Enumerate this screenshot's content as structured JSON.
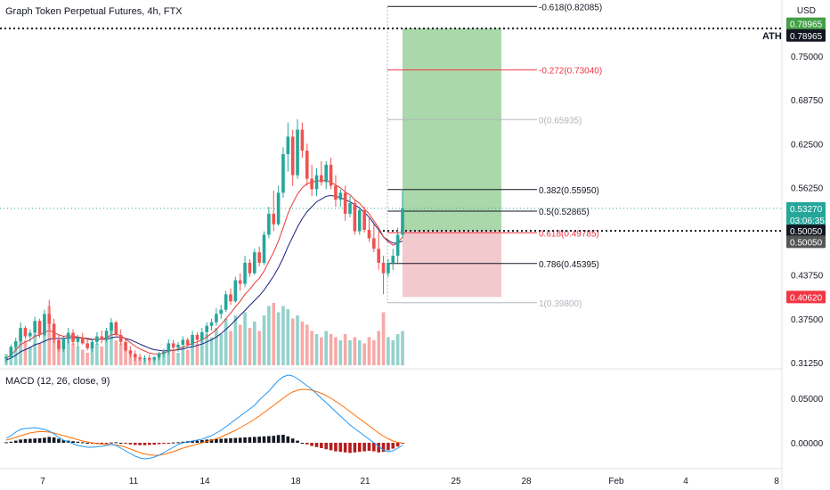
{
  "header": {
    "title": "Graph Token Perpetual Futures, 4h, FTX",
    "currency": "USD",
    "macd_title": "MACD (12, 26, close, 9)",
    "ath_label": "ATH"
  },
  "colors": {
    "up": "#26a69a",
    "down": "#ef5350",
    "ma_fast": "#e53935",
    "ma_slow": "#1a237e",
    "macd_line": "#2196f3",
    "signal_line": "#ff6d00",
    "target_zone": "#a5d6a7",
    "stop_zone": "#f1c3c6",
    "axis_text": "#131722",
    "badge_green": "#43a047",
    "badge_red": "#f23645",
    "badge_black": "#131722",
    "badge_teal": "#26a69a"
  },
  "chart_data": {
    "type": "candlestick",
    "x_ticks": [
      "7",
      "11",
      "14",
      "18",
      "21",
      "25",
      "28",
      "Feb",
      "4",
      "8"
    ],
    "y_ticks": [
      "0.75000",
      "0.68750",
      "0.62500",
      "0.56250",
      "0.43750",
      "0.37500",
      "0.31250"
    ],
    "macd_ticks": [
      "0.05000",
      "0.00000"
    ],
    "price_labels": [
      {
        "text": "0.78965",
        "price": 0.7963,
        "style": "green"
      },
      {
        "text": "0.78965",
        "price": 0.7795,
        "style": "black"
      },
      {
        "text": "0.53270",
        "price": 0.5327,
        "style": "teal"
      },
      {
        "text": "03:06:35",
        "price": 0.5163,
        "style": "teal"
      },
      {
        "text": "0.50050",
        "price": 0.5005,
        "style": "black"
      },
      {
        "text": "0.50050",
        "price": 0.485,
        "style": "grey"
      },
      {
        "text": "0.40620",
        "price": 0.4062,
        "style": "red"
      }
    ],
    "ath_price": 0.78965,
    "last_price": 0.5327,
    "entry_price": 0.5005,
    "fibonacci": [
      {
        "label": "-0.618(0.82085)",
        "price": 0.82085,
        "color": "#131722"
      },
      {
        "label": "-0.272(0.73040)",
        "price": 0.7304,
        "color": "#f23645"
      },
      {
        "label": "0(0.65935)",
        "price": 0.65935,
        "color": "#b2b5be"
      },
      {
        "label": "0.382(0.55950)",
        "price": 0.5595,
        "color": "#131722"
      },
      {
        "label": "0.5(0.52865)",
        "price": 0.52865,
        "color": "#131722"
      },
      {
        "label": "0.618(0.49785)",
        "price": 0.49785,
        "color": "#f23645"
      },
      {
        "label": "0.786(0.45395)",
        "price": 0.45395,
        "color": "#131722"
      },
      {
        "label": "1(0.39800)",
        "price": 0.398,
        "color": "#b2b5be"
      }
    ],
    "position": {
      "entry": 0.5005,
      "target": 0.78965,
      "stop": 0.4062
    },
    "candles": [
      [
        0.318,
        0.322,
        0.312,
        0.32
      ],
      [
        0.32,
        0.338,
        0.318,
        0.335
      ],
      [
        0.335,
        0.348,
        0.33,
        0.343
      ],
      [
        0.343,
        0.37,
        0.34,
        0.362
      ],
      [
        0.362,
        0.365,
        0.346,
        0.35
      ],
      [
        0.35,
        0.36,
        0.342,
        0.355
      ],
      [
        0.355,
        0.378,
        0.35,
        0.372
      ],
      [
        0.372,
        0.375,
        0.348,
        0.352
      ],
      [
        0.352,
        0.388,
        0.35,
        0.382
      ],
      [
        0.382,
        0.402,
        0.36,
        0.368
      ],
      [
        0.368,
        0.375,
        0.34,
        0.345
      ],
      [
        0.345,
        0.352,
        0.328,
        0.332
      ],
      [
        0.332,
        0.35,
        0.328,
        0.346
      ],
      [
        0.346,
        0.362,
        0.34,
        0.355
      ],
      [
        0.355,
        0.36,
        0.338,
        0.342
      ],
      [
        0.342,
        0.352,
        0.335,
        0.348
      ],
      [
        0.348,
        0.355,
        0.338,
        0.34
      ],
      [
        0.34,
        0.348,
        0.33,
        0.333
      ],
      [
        0.333,
        0.346,
        0.328,
        0.342
      ],
      [
        0.342,
        0.356,
        0.338,
        0.35
      ],
      [
        0.35,
        0.358,
        0.34,
        0.345
      ],
      [
        0.345,
        0.362,
        0.342,
        0.358
      ],
      [
        0.358,
        0.376,
        0.352,
        0.37
      ],
      [
        0.37,
        0.372,
        0.348,
        0.352
      ],
      [
        0.352,
        0.36,
        0.338,
        0.342
      ],
      [
        0.342,
        0.348,
        0.328,
        0.33
      ],
      [
        0.33,
        0.336,
        0.32,
        0.325
      ],
      [
        0.325,
        0.33,
        0.315,
        0.32
      ],
      [
        0.32,
        0.325,
        0.315,
        0.318
      ],
      [
        0.318,
        0.323,
        0.313,
        0.319
      ],
      [
        0.319,
        0.324,
        0.314,
        0.317
      ],
      [
        0.317,
        0.322,
        0.313,
        0.32
      ],
      [
        0.32,
        0.328,
        0.316,
        0.325
      ],
      [
        0.325,
        0.332,
        0.32,
        0.328
      ],
      [
        0.328,
        0.346,
        0.324,
        0.34
      ],
      [
        0.34,
        0.345,
        0.33,
        0.334
      ],
      [
        0.334,
        0.342,
        0.328,
        0.338
      ],
      [
        0.338,
        0.35,
        0.332,
        0.345
      ],
      [
        0.345,
        0.348,
        0.335,
        0.338
      ],
      [
        0.338,
        0.358,
        0.335,
        0.352
      ],
      [
        0.352,
        0.356,
        0.34,
        0.345
      ],
      [
        0.345,
        0.362,
        0.34,
        0.356
      ],
      [
        0.356,
        0.37,
        0.35,
        0.365
      ],
      [
        0.365,
        0.375,
        0.358,
        0.37
      ],
      [
        0.37,
        0.39,
        0.365,
        0.382
      ],
      [
        0.382,
        0.395,
        0.375,
        0.388
      ],
      [
        0.388,
        0.415,
        0.385,
        0.41
      ],
      [
        0.41,
        0.418,
        0.395,
        0.4
      ],
      [
        0.4,
        0.435,
        0.398,
        0.43
      ],
      [
        0.43,
        0.44,
        0.415,
        0.425
      ],
      [
        0.425,
        0.465,
        0.42,
        0.455
      ],
      [
        0.455,
        0.46,
        0.435,
        0.44
      ],
      [
        0.44,
        0.475,
        0.438,
        0.47
      ],
      [
        0.47,
        0.478,
        0.45,
        0.455
      ],
      [
        0.455,
        0.5,
        0.452,
        0.495
      ],
      [
        0.495,
        0.535,
        0.49,
        0.525
      ],
      [
        0.525,
        0.558,
        0.5,
        0.51
      ],
      [
        0.51,
        0.565,
        0.508,
        0.555
      ],
      [
        0.555,
        0.62,
        0.548,
        0.61
      ],
      [
        0.61,
        0.655,
        0.585,
        0.635
      ],
      [
        0.635,
        0.645,
        0.565,
        0.58
      ],
      [
        0.58,
        0.66,
        0.575,
        0.645
      ],
      [
        0.645,
        0.655,
        0.605,
        0.615
      ],
      [
        0.615,
        0.625,
        0.565,
        0.575
      ],
      [
        0.575,
        0.595,
        0.55,
        0.56
      ],
      [
        0.56,
        0.59,
        0.55,
        0.58
      ],
      [
        0.58,
        0.6,
        0.565,
        0.57
      ],
      [
        0.57,
        0.6,
        0.56,
        0.595
      ],
      [
        0.595,
        0.605,
        0.56,
        0.565
      ],
      [
        0.565,
        0.58,
        0.535,
        0.545
      ],
      [
        0.545,
        0.56,
        0.535,
        0.555
      ],
      [
        0.555,
        0.565,
        0.515,
        0.525
      ],
      [
        0.525,
        0.55,
        0.52,
        0.54
      ],
      [
        0.54,
        0.545,
        0.495,
        0.5
      ],
      [
        0.5,
        0.535,
        0.495,
        0.53
      ],
      [
        0.53,
        0.535,
        0.498,
        0.502
      ],
      [
        0.502,
        0.52,
        0.485,
        0.49
      ],
      [
        0.49,
        0.51,
        0.47,
        0.475
      ],
      [
        0.475,
        0.5,
        0.445,
        0.455
      ],
      [
        0.455,
        0.465,
        0.41,
        0.44
      ],
      [
        0.44,
        0.46,
        0.435,
        0.455
      ],
      [
        0.455,
        0.475,
        0.445,
        0.465
      ],
      [
        0.465,
        0.505,
        0.455,
        0.495
      ],
      [
        0.495,
        0.56,
        0.49,
        0.5327
      ]
    ],
    "ma_fast": [
      0.318,
      0.324,
      0.33,
      0.338,
      0.342,
      0.345,
      0.35,
      0.352,
      0.356,
      0.358,
      0.356,
      0.352,
      0.35,
      0.351,
      0.35,
      0.349,
      0.348,
      0.346,
      0.345,
      0.346,
      0.346,
      0.348,
      0.352,
      0.353,
      0.351,
      0.346,
      0.341,
      0.336,
      0.332,
      0.329,
      0.326,
      0.325,
      0.325,
      0.326,
      0.329,
      0.33,
      0.332,
      0.335,
      0.337,
      0.34,
      0.342,
      0.345,
      0.349,
      0.354,
      0.36,
      0.367,
      0.375,
      0.383,
      0.392,
      0.4,
      0.41,
      0.417,
      0.426,
      0.433,
      0.443,
      0.457,
      0.47,
      0.486,
      0.505,
      0.525,
      0.54,
      0.553,
      0.562,
      0.568,
      0.57,
      0.572,
      0.572,
      0.573,
      0.57,
      0.566,
      0.562,
      0.556,
      0.552,
      0.545,
      0.54,
      0.532,
      0.525,
      0.515,
      0.505,
      0.492,
      0.485,
      0.48,
      0.483,
      0.492
    ],
    "ma_slow": [
      0.316,
      0.319,
      0.323,
      0.328,
      0.331,
      0.334,
      0.338,
      0.34,
      0.343,
      0.346,
      0.347,
      0.347,
      0.347,
      0.348,
      0.348,
      0.348,
      0.348,
      0.347,
      0.346,
      0.346,
      0.346,
      0.346,
      0.348,
      0.349,
      0.349,
      0.347,
      0.345,
      0.342,
      0.339,
      0.336,
      0.333,
      0.331,
      0.33,
      0.329,
      0.33,
      0.33,
      0.331,
      0.332,
      0.334,
      0.335,
      0.337,
      0.339,
      0.342,
      0.345,
      0.349,
      0.354,
      0.36,
      0.366,
      0.373,
      0.38,
      0.387,
      0.394,
      0.401,
      0.408,
      0.416,
      0.426,
      0.436,
      0.448,
      0.462,
      0.478,
      0.492,
      0.506,
      0.518,
      0.528,
      0.535,
      0.542,
      0.546,
      0.55,
      0.551,
      0.55,
      0.548,
      0.545,
      0.542,
      0.538,
      0.533,
      0.527,
      0.52,
      0.511,
      0.502,
      0.492,
      0.487,
      0.483,
      0.483,
      0.486
    ],
    "volume": [
      0.18,
      0.25,
      0.35,
      0.55,
      0.4,
      0.3,
      0.5,
      0.35,
      0.75,
      0.95,
      0.55,
      0.4,
      0.3,
      0.45,
      0.35,
      0.3,
      0.25,
      0.2,
      0.3,
      0.35,
      0.3,
      0.45,
      0.65,
      0.4,
      0.35,
      0.25,
      0.2,
      0.15,
      0.12,
      0.1,
      0.12,
      0.1,
      0.15,
      0.2,
      0.35,
      0.25,
      0.2,
      0.3,
      0.25,
      0.4,
      0.35,
      0.45,
      0.5,
      0.45,
      0.6,
      0.5,
      0.75,
      0.55,
      0.8,
      0.65,
      0.85,
      0.6,
      0.7,
      0.55,
      0.8,
      0.95,
      1.0,
      0.85,
      0.95,
      0.9,
      0.75,
      0.8,
      0.7,
      0.65,
      0.55,
      0.5,
      0.45,
      0.55,
      0.5,
      0.45,
      0.4,
      0.5,
      0.4,
      0.45,
      0.4,
      0.35,
      0.45,
      0.4,
      0.55,
      0.85,
      0.45,
      0.4,
      0.5,
      0.55
    ],
    "macd_hist": [
      0.001,
      0.002,
      0.004,
      0.006,
      0.007,
      0.0075,
      0.008,
      0.0085,
      0.0095,
      0.011,
      0.01,
      0.0075,
      0.005,
      0.004,
      0.003,
      0.002,
      0.001,
      0.0,
      -0.001,
      -0.0015,
      -0.001,
      -0.0005,
      0.0005,
      0.001,
      0.0,
      -0.0015,
      -0.003,
      -0.004,
      -0.0045,
      -0.0045,
      -0.004,
      -0.0035,
      -0.0025,
      -0.0015,
      -0.0005,
      0.0005,
      0.001,
      0.002,
      0.003,
      0.0035,
      0.004,
      0.005,
      0.006,
      0.0065,
      0.007,
      0.0075,
      0.008,
      0.0085,
      0.009,
      0.0095,
      0.01,
      0.0105,
      0.011,
      0.0115,
      0.012,
      0.0125,
      0.013,
      0.0145,
      0.015,
      0.012,
      0.008,
      0.004,
      0.0,
      -0.003,
      -0.006,
      -0.008,
      -0.01,
      -0.012,
      -0.014,
      -0.016,
      -0.017,
      -0.018,
      -0.019,
      -0.018,
      -0.017,
      -0.016,
      -0.015,
      -0.016,
      -0.018,
      -0.017,
      -0.014,
      -0.011,
      -0.007,
      -0.002
    ],
    "macd_line": [
      0.005,
      0.008,
      0.012,
      0.015,
      0.016,
      0.0165,
      0.017,
      0.016,
      0.015,
      0.013,
      0.01,
      0.006,
      0.003,
      0.001,
      -0.001,
      -0.003,
      -0.004,
      -0.005,
      -0.005,
      -0.0045,
      -0.004,
      -0.003,
      -0.002,
      -0.003,
      -0.006,
      -0.009,
      -0.012,
      -0.015,
      -0.017,
      -0.018,
      -0.0175,
      -0.016,
      -0.014,
      -0.011,
      -0.008,
      -0.005,
      -0.002,
      0.0,
      0.001,
      0.002,
      0.003,
      0.004,
      0.006,
      0.008,
      0.011,
      0.014,
      0.018,
      0.022,
      0.026,
      0.03,
      0.034,
      0.038,
      0.042,
      0.048,
      0.053,
      0.058,
      0.064,
      0.07,
      0.074,
      0.076,
      0.075,
      0.072,
      0.068,
      0.064,
      0.06,
      0.055,
      0.05,
      0.045,
      0.04,
      0.035,
      0.03,
      0.025,
      0.02,
      0.016,
      0.012,
      0.008,
      0.004,
      0.0,
      -0.004,
      -0.008,
      -0.01,
      -0.009,
      -0.006,
      -0.003
    ],
    "signal_line": [
      0.003,
      0.0045,
      0.006,
      0.008,
      0.0095,
      0.011,
      0.012,
      0.0125,
      0.0125,
      0.012,
      0.011,
      0.0095,
      0.008,
      0.0065,
      0.005,
      0.0035,
      0.002,
      0.001,
      0.0,
      -0.001,
      -0.0015,
      -0.0018,
      -0.002,
      -0.0025,
      -0.0035,
      -0.005,
      -0.007,
      -0.009,
      -0.011,
      -0.0125,
      -0.0135,
      -0.014,
      -0.014,
      -0.013,
      -0.0115,
      -0.01,
      -0.008,
      -0.006,
      -0.0045,
      -0.003,
      -0.0015,
      0.0,
      0.0015,
      0.003,
      0.0045,
      0.0065,
      0.009,
      0.0115,
      0.014,
      0.017,
      0.02,
      0.023,
      0.0265,
      0.03,
      0.034,
      0.038,
      0.042,
      0.046,
      0.05,
      0.054,
      0.057,
      0.059,
      0.06,
      0.0598,
      0.059,
      0.0575,
      0.0555,
      0.053,
      0.05,
      0.0465,
      0.043,
      0.039,
      0.035,
      0.031,
      0.027,
      0.023,
      0.019,
      0.015,
      0.011,
      0.0075,
      0.0045,
      0.002,
      0.0005,
      -0.0005
    ]
  }
}
